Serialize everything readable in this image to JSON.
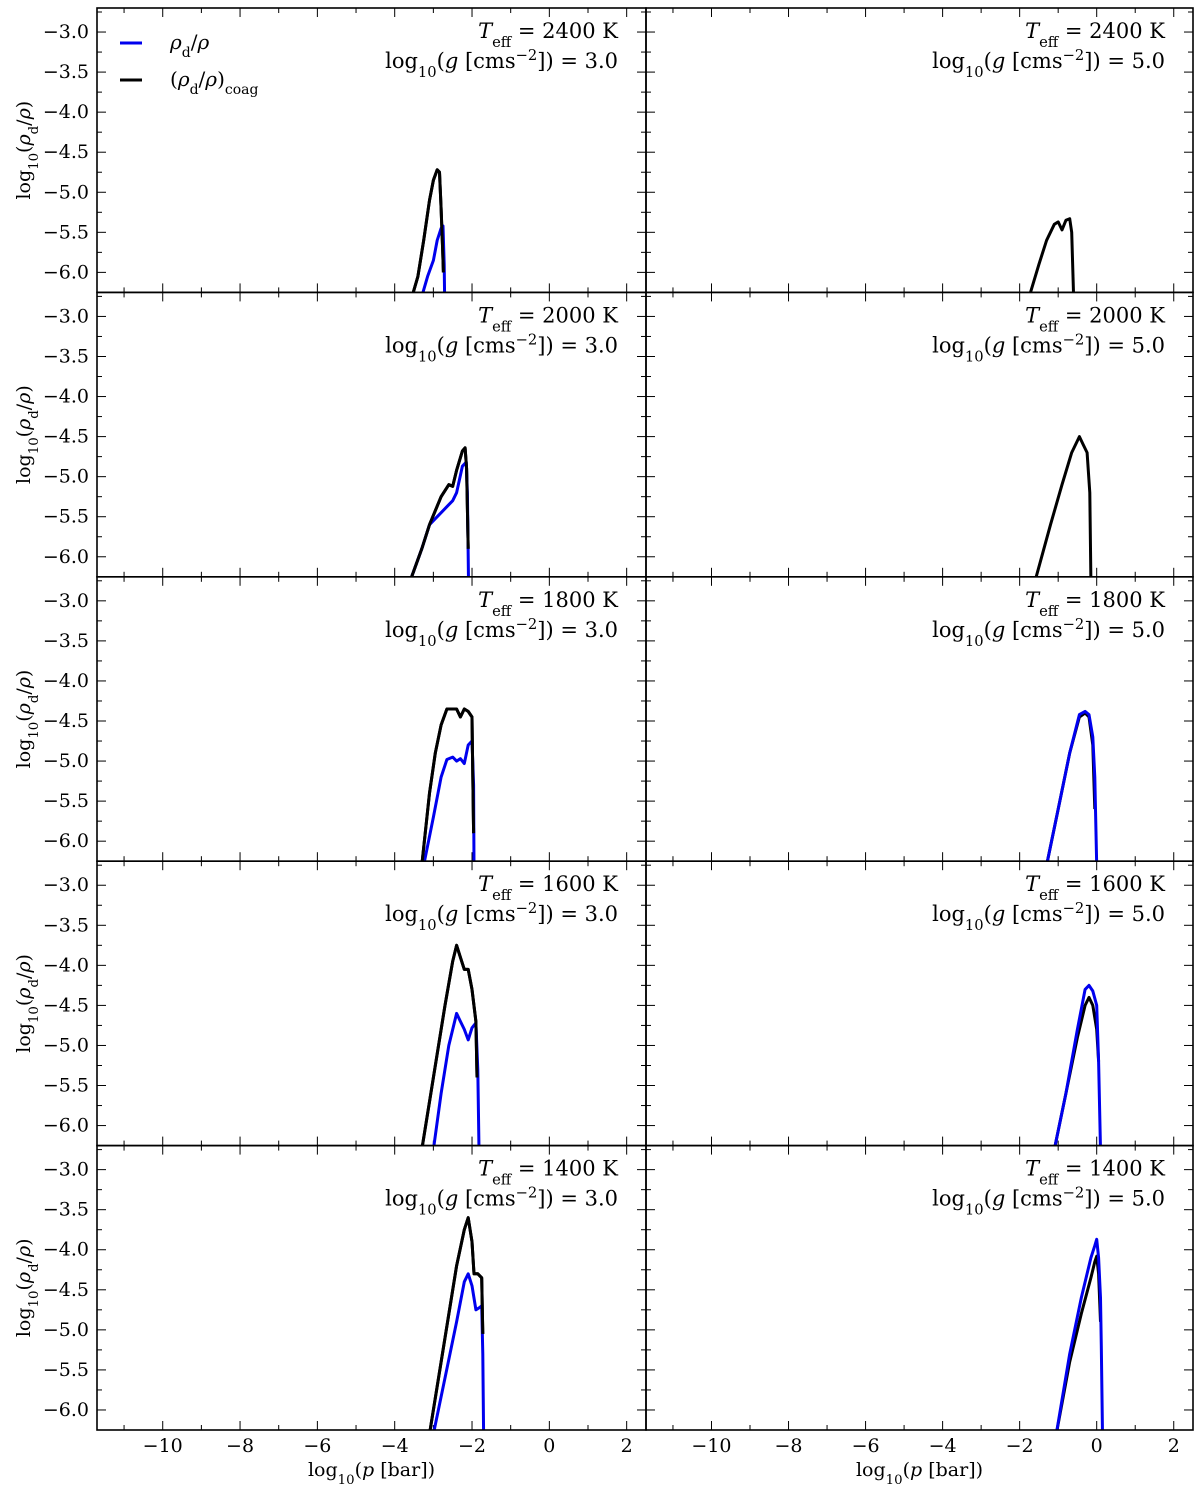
{
  "chart_data": {
    "type": "line",
    "layout": "5x2 grid of panels sharing axes",
    "xlabel": "log10(p [bar])",
    "ylabel": "log10(ρd/ρ)",
    "xlim": [
      -11.7,
      2.5
    ],
    "ylim": [
      -6.25,
      -2.7
    ],
    "xticks": [
      -10,
      -8,
      -6,
      -4,
      -2,
      0,
      2
    ],
    "xtick_labels": [
      "−10",
      "−8",
      "−6",
      "−4",
      "−2",
      "0",
      "2"
    ],
    "yticks": [
      -3.0,
      -3.5,
      -4.0,
      -4.5,
      -5.0,
      -5.5,
      -6.0
    ],
    "ytick_labels": [
      "−3.0",
      "−3.5",
      "−4.0",
      "−4.5",
      "−5.0",
      "−5.5",
      "−6.0"
    ],
    "grid": false,
    "legend": {
      "placement": "top-left of first panel",
      "entries": [
        {
          "label": "ρd/ρ",
          "color": "#0000ee"
        },
        {
          "label": "(ρd/ρ)coag",
          "color": "#000000"
        }
      ]
    },
    "series_colors": {
      "rho": "#0000ee",
      "coag": "#000000"
    },
    "panels": [
      {
        "teff": "T_eff = 2400 K",
        "logg": "log10(g [cms^-2]) = 3.0",
        "rho": [
          [
            -3.3,
            -6.3
          ],
          [
            -3.15,
            -6.05
          ],
          [
            -3.0,
            -5.85
          ],
          [
            -2.9,
            -5.6
          ],
          [
            -2.8,
            -5.45
          ],
          [
            -2.75,
            -5.42
          ],
          [
            -2.72,
            -5.9
          ],
          [
            -2.71,
            -6.3
          ]
        ],
        "coag": [
          [
            -3.55,
            -6.3
          ],
          [
            -3.4,
            -6.05
          ],
          [
            -3.25,
            -5.6
          ],
          [
            -3.1,
            -5.1
          ],
          [
            -3.0,
            -4.85
          ],
          [
            -2.9,
            -4.72
          ],
          [
            -2.84,
            -4.75
          ],
          [
            -2.8,
            -5.2
          ],
          [
            -2.76,
            -5.7
          ],
          [
            -2.74,
            -6.0
          ]
        ]
      },
      {
        "teff": "T_eff = 2400 K",
        "logg": "log10(g [cms^-2]) = 5.0",
        "rho": [],
        "coag": [
          [
            -1.75,
            -6.3
          ],
          [
            -1.5,
            -5.9
          ],
          [
            -1.3,
            -5.6
          ],
          [
            -1.1,
            -5.4
          ],
          [
            -1.0,
            -5.37
          ],
          [
            -0.9,
            -5.47
          ],
          [
            -0.8,
            -5.35
          ],
          [
            -0.7,
            -5.33
          ],
          [
            -0.65,
            -5.5
          ],
          [
            -0.6,
            -6.3
          ]
        ]
      },
      {
        "teff": "T_eff = 2000 K",
        "logg": "log10(g [cms^-2]) = 3.0",
        "rho": [
          [
            -3.6,
            -6.3
          ],
          [
            -3.3,
            -5.9
          ],
          [
            -3.1,
            -5.6
          ],
          [
            -2.8,
            -5.45
          ],
          [
            -2.6,
            -5.35
          ],
          [
            -2.5,
            -5.3
          ],
          [
            -2.4,
            -5.2
          ],
          [
            -2.25,
            -4.87
          ],
          [
            -2.15,
            -4.82
          ],
          [
            -2.12,
            -5.2
          ],
          [
            -2.1,
            -6.0
          ],
          [
            -2.09,
            -6.3
          ]
        ],
        "coag": [
          [
            -3.6,
            -6.3
          ],
          [
            -3.3,
            -5.9
          ],
          [
            -3.1,
            -5.6
          ],
          [
            -2.8,
            -5.25
          ],
          [
            -2.6,
            -5.1
          ],
          [
            -2.5,
            -5.12
          ],
          [
            -2.4,
            -4.92
          ],
          [
            -2.25,
            -4.68
          ],
          [
            -2.18,
            -4.64
          ],
          [
            -2.14,
            -4.9
          ],
          [
            -2.12,
            -5.4
          ],
          [
            -2.1,
            -5.9
          ]
        ]
      },
      {
        "teff": "T_eff = 2000 K",
        "logg": "log10(g [cms^-2]) = 5.0",
        "rho": [],
        "coag": [
          [
            -1.6,
            -6.3
          ],
          [
            -1.2,
            -5.6
          ],
          [
            -0.9,
            -5.1
          ],
          [
            -0.65,
            -4.7
          ],
          [
            -0.45,
            -4.5
          ],
          [
            -0.35,
            -4.6
          ],
          [
            -0.25,
            -4.7
          ],
          [
            -0.18,
            -5.2
          ],
          [
            -0.15,
            -6.3
          ]
        ]
      },
      {
        "teff": "T_eff = 1800 K",
        "logg": "log10(g [cms^-2]) = 3.0",
        "rho": [
          [
            -3.25,
            -6.3
          ],
          [
            -3.0,
            -5.7
          ],
          [
            -2.8,
            -5.2
          ],
          [
            -2.65,
            -4.98
          ],
          [
            -2.5,
            -4.95
          ],
          [
            -2.4,
            -5.0
          ],
          [
            -2.3,
            -4.97
          ],
          [
            -2.2,
            -5.03
          ],
          [
            -2.1,
            -4.8
          ],
          [
            -2.0,
            -4.75
          ],
          [
            -1.96,
            -5.3
          ],
          [
            -1.95,
            -6.3
          ]
        ],
        "coag": [
          [
            -3.3,
            -6.3
          ],
          [
            -3.1,
            -5.4
          ],
          [
            -2.95,
            -4.9
          ],
          [
            -2.8,
            -4.55
          ],
          [
            -2.65,
            -4.35
          ],
          [
            -2.4,
            -4.35
          ],
          [
            -2.3,
            -4.45
          ],
          [
            -2.2,
            -4.35
          ],
          [
            -2.1,
            -4.38
          ],
          [
            -2.0,
            -4.45
          ],
          [
            -1.98,
            -5.2
          ],
          [
            -1.96,
            -5.9
          ]
        ]
      },
      {
        "teff": "T_eff = 1800 K",
        "logg": "log10(g [cms^-2]) = 5.0",
        "rho": [
          [
            -1.3,
            -6.3
          ],
          [
            -1.0,
            -5.6
          ],
          [
            -0.7,
            -4.9
          ],
          [
            -0.45,
            -4.42
          ],
          [
            -0.3,
            -4.38
          ],
          [
            -0.2,
            -4.42
          ],
          [
            -0.1,
            -4.7
          ],
          [
            -0.05,
            -5.2
          ],
          [
            0.0,
            -6.3
          ]
        ],
        "coag": [
          [
            -1.3,
            -6.3
          ],
          [
            -1.0,
            -5.6
          ],
          [
            -0.7,
            -4.9
          ],
          [
            -0.45,
            -4.45
          ],
          [
            -0.3,
            -4.4
          ],
          [
            -0.2,
            -4.45
          ],
          [
            -0.1,
            -4.8
          ],
          [
            -0.05,
            -5.6
          ]
        ]
      },
      {
        "teff": "T_eff = 1600 K",
        "logg": "log10(g [cms^-2]) = 3.0",
        "rho": [
          [
            -3.0,
            -6.3
          ],
          [
            -2.8,
            -5.6
          ],
          [
            -2.6,
            -5.0
          ],
          [
            -2.4,
            -4.6
          ],
          [
            -2.3,
            -4.7
          ],
          [
            -2.2,
            -4.8
          ],
          [
            -2.1,
            -4.93
          ],
          [
            -2.0,
            -4.78
          ],
          [
            -1.9,
            -4.72
          ],
          [
            -1.85,
            -5.3
          ],
          [
            -1.82,
            -6.3
          ]
        ],
        "coag": [
          [
            -3.3,
            -6.3
          ],
          [
            -3.0,
            -5.4
          ],
          [
            -2.7,
            -4.5
          ],
          [
            -2.5,
            -3.95
          ],
          [
            -2.4,
            -3.75
          ],
          [
            -2.3,
            -3.9
          ],
          [
            -2.2,
            -4.05
          ],
          [
            -2.1,
            -4.05
          ],
          [
            -2.0,
            -4.3
          ],
          [
            -1.9,
            -4.7
          ],
          [
            -1.87,
            -5.4
          ]
        ]
      },
      {
        "teff": "T_eff = 1600 K",
        "logg": "log10(g [cms^-2]) = 5.0",
        "rho": [
          [
            -1.1,
            -6.3
          ],
          [
            -0.8,
            -5.6
          ],
          [
            -0.5,
            -4.8
          ],
          [
            -0.3,
            -4.3
          ],
          [
            -0.2,
            -4.25
          ],
          [
            -0.1,
            -4.32
          ],
          [
            0.0,
            -4.5
          ],
          [
            0.05,
            -5.2
          ],
          [
            0.1,
            -6.3
          ]
        ],
        "coag": [
          [
            -1.1,
            -6.3
          ],
          [
            -0.8,
            -5.6
          ],
          [
            -0.5,
            -4.9
          ],
          [
            -0.3,
            -4.5
          ],
          [
            -0.2,
            -4.4
          ],
          [
            -0.1,
            -4.5
          ],
          [
            0.0,
            -4.8
          ],
          [
            0.05,
            -5.2
          ]
        ]
      },
      {
        "teff": "T_eff = 1400 K",
        "logg": "log10(g [cms^-2]) = 3.0",
        "rho": [
          [
            -3.0,
            -6.3
          ],
          [
            -2.7,
            -5.6
          ],
          [
            -2.4,
            -4.9
          ],
          [
            -2.2,
            -4.4
          ],
          [
            -2.1,
            -4.3
          ],
          [
            -2.0,
            -4.45
          ],
          [
            -1.9,
            -4.75
          ],
          [
            -1.8,
            -4.72
          ],
          [
            -1.75,
            -4.7
          ],
          [
            -1.72,
            -5.3
          ],
          [
            -1.7,
            -6.3
          ]
        ],
        "coag": [
          [
            -3.1,
            -6.3
          ],
          [
            -2.7,
            -5.1
          ],
          [
            -2.4,
            -4.2
          ],
          [
            -2.2,
            -3.75
          ],
          [
            -2.1,
            -3.6
          ],
          [
            -2.0,
            -3.9
          ],
          [
            -1.95,
            -4.3
          ],
          [
            -1.85,
            -4.3
          ],
          [
            -1.75,
            -4.35
          ],
          [
            -1.72,
            -5.05
          ]
        ]
      },
      {
        "teff": "T_eff = 1400 K",
        "logg": "log10(g [cms^-2]) = 5.0",
        "rho": [
          [
            -1.05,
            -6.3
          ],
          [
            -0.7,
            -5.3
          ],
          [
            -0.4,
            -4.6
          ],
          [
            -0.15,
            -4.1
          ],
          [
            -0.05,
            -3.95
          ],
          [
            0.0,
            -3.87
          ],
          [
            0.05,
            -4.1
          ],
          [
            0.1,
            -4.6
          ],
          [
            0.12,
            -5.2
          ],
          [
            0.15,
            -6.3
          ]
        ],
        "coag": [
          [
            -1.05,
            -6.3
          ],
          [
            -0.7,
            -5.4
          ],
          [
            -0.4,
            -4.8
          ],
          [
            -0.15,
            -4.35
          ],
          [
            -0.05,
            -4.15
          ],
          [
            0.0,
            -4.08
          ],
          [
            0.05,
            -4.3
          ],
          [
            0.1,
            -4.9
          ]
        ]
      }
    ]
  }
}
